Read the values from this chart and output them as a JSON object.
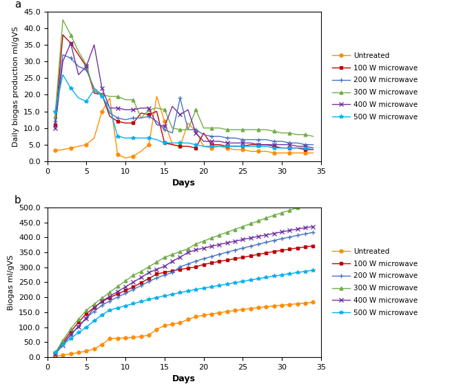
{
  "colors": {
    "untreated": "#FF8C00",
    "w100": "#C00000",
    "w200": "#4472C4",
    "w300": "#70AD47",
    "w400": "#7030A0",
    "w500": "#00B0F0"
  },
  "markers": {
    "untreated": "o",
    "w100": "s",
    "w200": "+",
    "w300": "^",
    "w400": "x",
    "w500": "*"
  },
  "legend_labels": [
    "Untreated",
    "100 W microwave",
    "200 W microwave",
    "300 W microwave",
    "400 W microwave",
    "500 W microwave"
  ],
  "panel_a": {
    "title": "a",
    "ylabel": "Daily biogas production ml/gVS",
    "xlabel": "Days",
    "xlim": [
      0,
      35
    ],
    "ylim": [
      0.0,
      45.0
    ],
    "yticks": [
      0.0,
      5.0,
      10.0,
      15.0,
      20.0,
      25.0,
      30.0,
      35.0,
      40.0,
      45.0
    ],
    "xticks": [
      0,
      5,
      10,
      15,
      20,
      25,
      30,
      35
    ],
    "days": [
      1,
      2,
      3,
      4,
      5,
      6,
      7,
      8,
      9,
      10,
      11,
      12,
      13,
      14,
      15,
      16,
      17,
      18,
      19,
      20,
      21,
      22,
      23,
      24,
      25,
      26,
      27,
      28,
      29,
      30,
      31,
      32,
      33,
      34
    ],
    "untreated": [
      3.2,
      3.5,
      4.0,
      4.5,
      5.0,
      7.0,
      15.0,
      19.0,
      2.0,
      1.0,
      1.5,
      3.0,
      5.0,
      19.5,
      12.0,
      5.0,
      4.5,
      11.5,
      9.0,
      4.5,
      4.0,
      4.5,
      4.0,
      3.5,
      3.5,
      3.0,
      3.0,
      3.0,
      2.5,
      2.5,
      2.5,
      2.5,
      2.5,
      2.5
    ],
    "w100": [
      11.0,
      38.0,
      35.5,
      32.0,
      28.5,
      20.5,
      20.0,
      13.5,
      12.0,
      11.5,
      11.5,
      14.5,
      14.0,
      15.0,
      5.5,
      5.0,
      4.5,
      4.5,
      4.0,
      8.5,
      5.0,
      5.0,
      4.5,
      4.5,
      4.5,
      5.0,
      5.0,
      5.0,
      4.5,
      4.0,
      4.0,
      4.0,
      3.5,
      3.5
    ],
    "w200": [
      12.0,
      32.0,
      31.0,
      28.5,
      27.5,
      22.0,
      20.0,
      14.5,
      13.0,
      12.5,
      13.0,
      13.0,
      13.5,
      12.0,
      9.5,
      8.5,
      19.0,
      9.5,
      9.5,
      8.0,
      7.5,
      7.5,
      7.0,
      7.0,
      6.5,
      6.5,
      6.5,
      6.5,
      6.0,
      6.0,
      5.5,
      5.5,
      5.0,
      5.0
    ],
    "w300": [
      13.5,
      42.5,
      38.0,
      33.0,
      29.0,
      21.0,
      20.0,
      19.5,
      19.5,
      18.5,
      18.5,
      13.0,
      15.5,
      16.0,
      15.5,
      10.0,
      9.5,
      9.5,
      15.5,
      10.0,
      10.0,
      10.0,
      9.5,
      9.5,
      9.5,
      9.5,
      9.5,
      9.5,
      9.0,
      8.5,
      8.5,
      8.0,
      8.0,
      7.5
    ],
    "w400": [
      10.0,
      30.0,
      35.5,
      26.0,
      28.5,
      35.0,
      22.0,
      16.0,
      16.0,
      15.5,
      15.5,
      16.0,
      16.0,
      11.0,
      10.5,
      16.5,
      14.0,
      15.5,
      8.5,
      6.0,
      6.0,
      6.0,
      5.5,
      5.5,
      5.5,
      5.5,
      5.0,
      5.0,
      5.0,
      5.0,
      5.0,
      4.5,
      4.5,
      4.0
    ],
    "w500": [
      15.0,
      26.0,
      22.0,
      19.0,
      18.0,
      21.5,
      19.5,
      16.0,
      7.5,
      7.0,
      7.0,
      7.0,
      7.0,
      6.5,
      5.5,
      5.5,
      5.5,
      5.5,
      5.0,
      4.5,
      4.5,
      4.5,
      4.5,
      4.5,
      4.5,
      4.5,
      4.5,
      4.5,
      4.0,
      4.0,
      4.0,
      4.0,
      4.0,
      3.5
    ]
  },
  "panel_b": {
    "title": "b",
    "ylabel": "Biogas ml/gVS",
    "xlabel": "Days",
    "xlim": [
      0,
      35
    ],
    "ylim": [
      0.0,
      500.0
    ],
    "yticks": [
      0.0,
      50.0,
      100.0,
      150.0,
      200.0,
      250.0,
      300.0,
      350.0,
      400.0,
      450.0,
      500.0
    ],
    "xticks": [
      0,
      5,
      10,
      15,
      20,
      25,
      30,
      35
    ]
  }
}
